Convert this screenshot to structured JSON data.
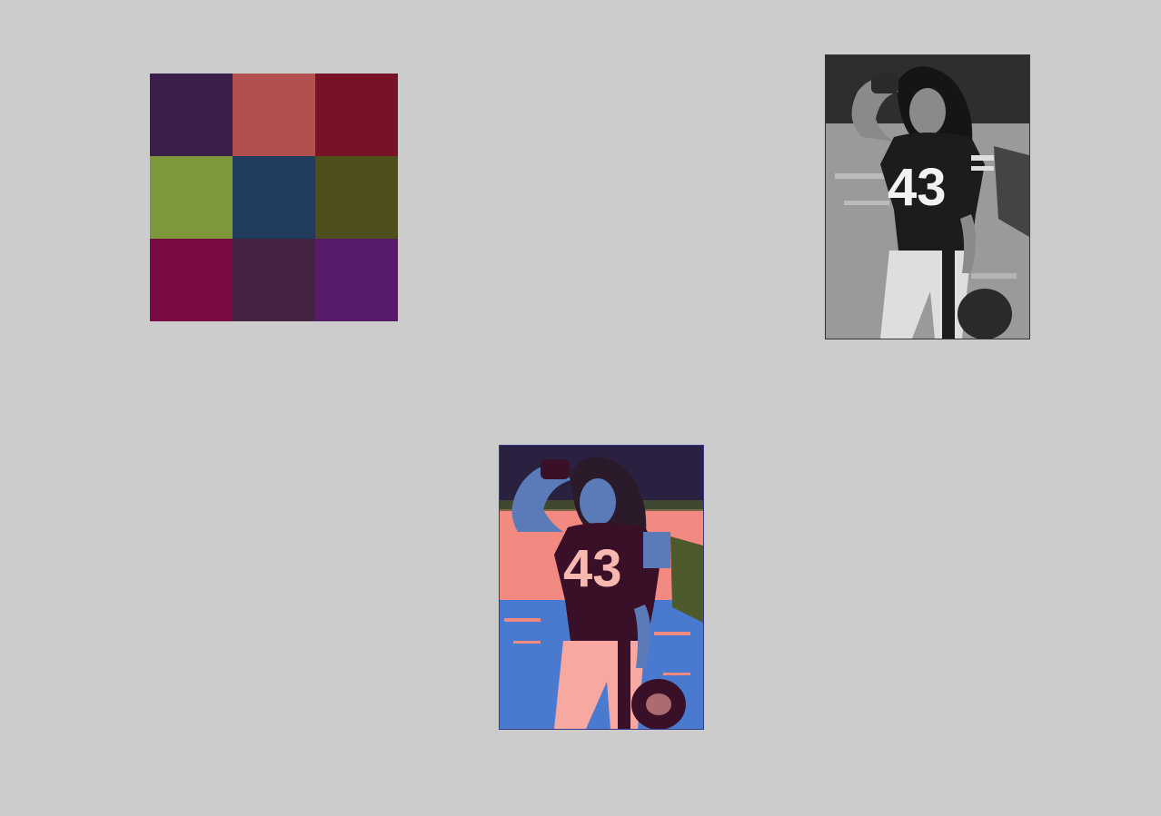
{
  "palette": {
    "colors": [
      "#3a1f4b",
      "#b2504f",
      "#771327",
      "#7d983b",
      "#223c5e",
      "#4f4f1d",
      "#770b42",
      "#452343",
      "#581b69"
    ]
  },
  "photo_grayscale": {
    "jersey_number": "43",
    "colors": {
      "background": "#6e6e6e",
      "crowd": "#2e2e2e",
      "field": "#9a9a9a",
      "jersey": "#1c1c1c",
      "skin": "#8a8a8a",
      "hair": "#151515",
      "pants": "#dedede",
      "number": "#f2f2f2",
      "glove": "#2a2a2a"
    }
  },
  "photo_posterized": {
    "jersey_number": "43",
    "colors": {
      "background": "#f28a82",
      "crowd": "#2a2040",
      "field": "#4a7ad0",
      "field_speckle": "#f28a82",
      "jersey": "#3a1028",
      "skin": "#5a7ab8",
      "hair": "#2a1a2a",
      "pants": "#f7a8a0",
      "number": "#f7b8b0",
      "glove": "#3a1028",
      "shadow": "#4c5a2c"
    }
  }
}
